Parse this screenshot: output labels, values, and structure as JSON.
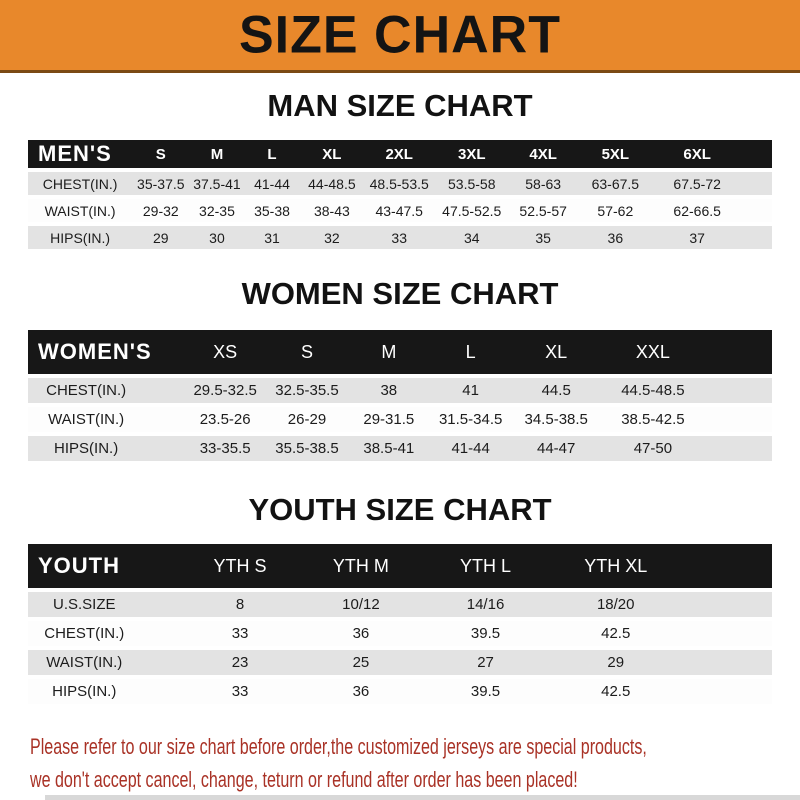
{
  "banner": {
    "title": "SIZE CHART"
  },
  "colors": {
    "banner_orange": "#E8882B",
    "banner_edge_brown": "#7B4A14",
    "header_bar_black": "#171717",
    "row_gray": "#E3E3E3",
    "disclaimer_red": "#A93226"
  },
  "sections": [
    {
      "heading": "MAN SIZE CHART",
      "group_label": "MEN'S",
      "columns": [
        "S",
        "M",
        "L",
        "XL",
        "2XL",
        "3XL",
        "4XL",
        "5XL",
        "6XL"
      ],
      "rows": [
        {
          "label": "CHEST(IN.)",
          "values": [
            "35-37.5",
            "37.5-41",
            "41-44",
            "44-48.5",
            "48.5-53.5",
            "53.5-58",
            "58-63",
            "63-67.5",
            "67.5-72"
          ]
        },
        {
          "label": "WAIST(IN.)",
          "values": [
            "29-32",
            "32-35",
            "35-38",
            "38-43",
            "43-47.5",
            "47.5-52.5",
            "52.5-57",
            "57-62",
            "62-66.5"
          ]
        },
        {
          "label": "HIPS(IN.)",
          "values": [
            "29",
            "30",
            "31",
            "32",
            "33",
            "34",
            "35",
            "36",
            "37"
          ]
        }
      ]
    },
    {
      "heading": "WOMEN SIZE CHART",
      "group_label": "WOMEN'S",
      "columns": [
        "XS",
        "S",
        "M",
        "L",
        "XL",
        "XXL"
      ],
      "rows": [
        {
          "label": "CHEST(IN.)",
          "values": [
            "29.5-32.5",
            "32.5-35.5",
            "38",
            "41",
            "44.5",
            "44.5-48.5"
          ]
        },
        {
          "label": "WAIST(IN.)",
          "values": [
            "23.5-26",
            "26-29",
            "29-31.5",
            "31.5-34.5",
            "34.5-38.5",
            "38.5-42.5"
          ]
        },
        {
          "label": "HIPS(IN.)",
          "values": [
            "33-35.5",
            "35.5-38.5",
            "38.5-41",
            "41-44",
            "44-47",
            "47-50"
          ]
        }
      ]
    },
    {
      "heading": "YOUTH SIZE CHART",
      "group_label": "YOUTH",
      "columns": [
        "YTH S",
        "YTH M",
        "YTH L",
        "YTH XL"
      ],
      "rows": [
        {
          "label": "U.S.SIZE",
          "values": [
            "8",
            "10/12",
            "14/16",
            "18/20"
          ]
        },
        {
          "label": "CHEST(IN.)",
          "values": [
            "33",
            "36",
            "39.5",
            "42.5"
          ]
        },
        {
          "label": "WAIST(IN.)",
          "values": [
            "23",
            "25",
            "27",
            "29"
          ]
        },
        {
          "label": "HIPS(IN.)",
          "values": [
            "33",
            "36",
            "39.5",
            "42.5"
          ]
        }
      ]
    }
  ],
  "disclaimer": {
    "line1": "Please refer to our size chart before order,the customized jerseys are special products,",
    "line2": "we don't accept cancel, change, teturn or refund after order has been placed!"
  }
}
